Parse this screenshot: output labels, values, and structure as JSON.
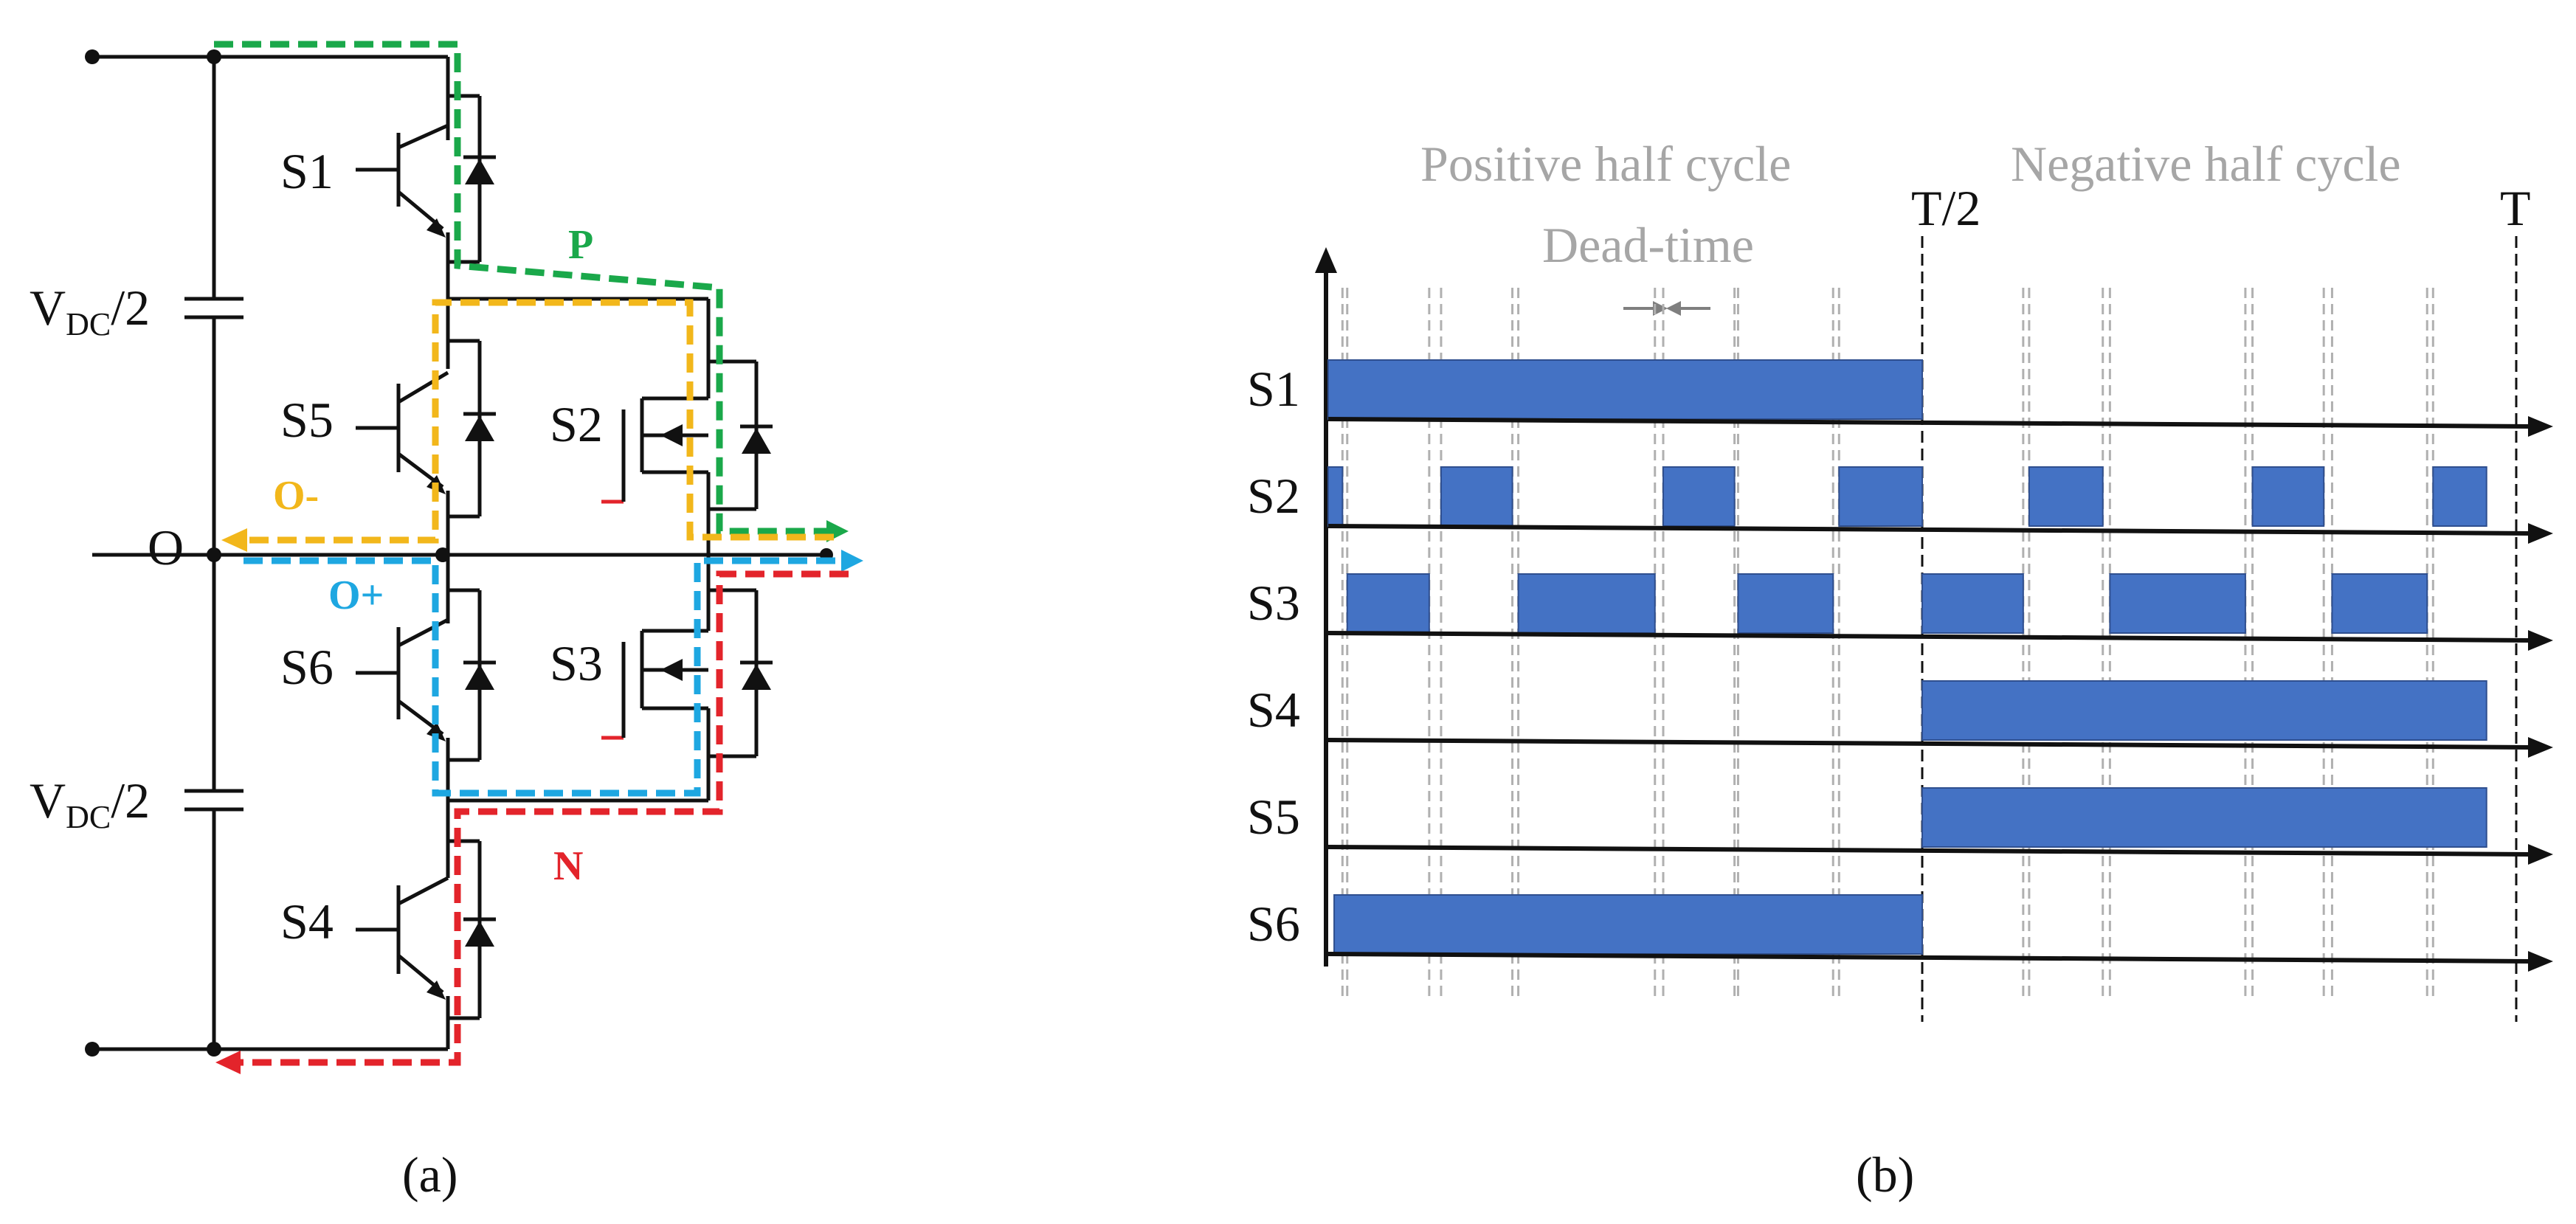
{
  "circuit": {
    "source_top_label": "V",
    "source_top_sub": "DC",
    "source_top_suffix": "/2",
    "source_bottom_label": "V",
    "source_bottom_sub": "DC",
    "source_bottom_suffix": "/2",
    "neutral_label": "O",
    "switches": {
      "s1": "S1",
      "s2": "S2",
      "s3": "S3",
      "s4": "S4",
      "s5": "S5",
      "s6": "S6"
    },
    "paths": {
      "p": {
        "label": "P",
        "color": "#1aa84a"
      },
      "o_minus": {
        "label": "O-",
        "color": "#f2b71b"
      },
      "o_plus": {
        "label": "O+",
        "color": "#1ea7e1"
      },
      "n": {
        "label": "N",
        "color": "#e3242b"
      }
    },
    "caption": "(a)"
  },
  "timing": {
    "title_positive": "Positive half cycle",
    "title_negative": "Negative half cycle",
    "dead_time": "Dead-time",
    "half_period": "T/2",
    "period": "T",
    "pulse_color": "#4472c4",
    "caption": "(b)",
    "period_units": 1.0,
    "rows": [
      {
        "name": "S1",
        "pulses": [
          [
            0.0,
            0.5
          ]
        ]
      },
      {
        "name": "S2",
        "pulses": [
          [
            0.0,
            0.012
          ],
          [
            0.095,
            0.155
          ],
          [
            0.282,
            0.342
          ],
          [
            0.43,
            0.5
          ],
          [
            0.59,
            0.652
          ],
          [
            0.778,
            0.838
          ],
          [
            0.93,
            0.975
          ]
        ]
      },
      {
        "name": "S3",
        "pulses": [
          [
            0.016,
            0.085
          ],
          [
            0.16,
            0.275
          ],
          [
            0.345,
            0.425
          ],
          [
            0.5,
            0.585
          ],
          [
            0.658,
            0.772
          ],
          [
            0.845,
            0.925
          ]
        ]
      },
      {
        "name": "S4",
        "pulses": [
          [
            0.5,
            0.975
          ]
        ]
      },
      {
        "name": "S5",
        "pulses": [
          [
            0.5,
            0.975
          ]
        ]
      },
      {
        "name": "S6",
        "pulses": [
          [
            0.005,
            0.5
          ]
        ]
      }
    ],
    "dead_time_marks": [
      0.012,
      0.016,
      0.085,
      0.095,
      0.155,
      0.16,
      0.275,
      0.282,
      0.342,
      0.345,
      0.425,
      0.43,
      0.585,
      0.59,
      0.652,
      0.658,
      0.772,
      0.778,
      0.838,
      0.845,
      0.925,
      0.93
    ]
  }
}
